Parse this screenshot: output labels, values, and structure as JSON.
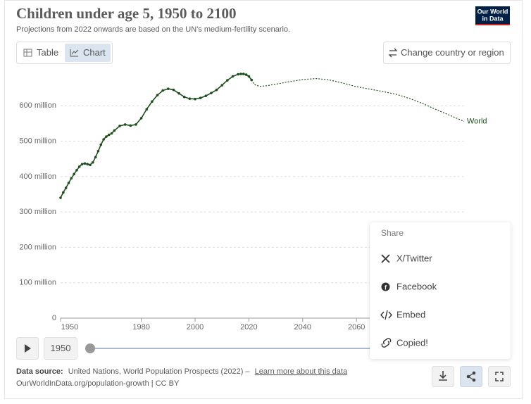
{
  "header": {
    "title": "Children under age 5, 1950 to 2100",
    "subtitle": "Projections from 2022 onwards are based on the UN's medium-fertility scenario.",
    "logo": [
      "Our World",
      "in Data"
    ]
  },
  "tabs": [
    "Table",
    "Chart"
  ],
  "change_button": "Change country or region",
  "chart_data": {
    "type": "line",
    "x": [
      1950,
      1951,
      1952,
      1953,
      1954,
      1955,
      1956,
      1957,
      1958,
      1959,
      1960,
      1961,
      1962,
      1963,
      1964,
      1965,
      1966,
      1967,
      1968,
      1969,
      1970,
      1972,
      1974,
      1976,
      1978,
      1980,
      1982,
      1984,
      1986,
      1988,
      1990,
      1992,
      1994,
      1996,
      1998,
      2000,
      2002,
      2004,
      2006,
      2008,
      2010,
      2012,
      2014,
      2016,
      2017,
      2018,
      2019,
      2020,
      2021,
      2022,
      2024,
      2026,
      2030,
      2035,
      2040,
      2045,
      2050,
      2055,
      2060,
      2065,
      2070,
      2075,
      2080,
      2085,
      2090,
      2095,
      2100
    ],
    "series": [
      {
        "name": "World",
        "color": "#1d4f1d",
        "markers": true,
        "values": [
          340000000,
          355000000,
          368000000,
          382000000,
          395000000,
          407000000,
          418000000,
          428000000,
          435000000,
          437000000,
          435000000,
          433000000,
          440000000,
          455000000,
          472000000,
          490000000,
          505000000,
          513000000,
          518000000,
          522000000,
          530000000,
          543000000,
          547000000,
          544000000,
          547000000,
          565000000,
          590000000,
          612000000,
          630000000,
          643000000,
          648000000,
          645000000,
          635000000,
          625000000,
          620000000,
          619000000,
          622000000,
          628000000,
          636000000,
          645000000,
          658000000,
          672000000,
          683000000,
          689000000,
          690000000,
          690000000,
          688000000,
          683000000,
          673000000,
          null,
          null,
          null,
          null,
          null,
          null,
          null,
          null,
          null,
          null,
          null,
          null,
          null,
          null,
          null,
          null,
          null,
          null
        ]
      },
      {
        "color": "#1d4f1d",
        "line_style": "dashed",
        "values": [
          null,
          null,
          null,
          null,
          null,
          null,
          null,
          null,
          null,
          null,
          null,
          null,
          null,
          null,
          null,
          null,
          null,
          null,
          null,
          null,
          null,
          null,
          null,
          null,
          null,
          null,
          null,
          null,
          null,
          null,
          null,
          null,
          null,
          null,
          null,
          null,
          null,
          null,
          null,
          null,
          null,
          null,
          null,
          null,
          null,
          null,
          null,
          null,
          673000000,
          660000000,
          655000000,
          656000000,
          661000000,
          668000000,
          674000000,
          677000000,
          673000000,
          664000000,
          654000000,
          647000000,
          640000000,
          632000000,
          620000000,
          605000000,
          588000000,
          572000000,
          556000000
        ]
      }
    ],
    "xlim": [
      1950,
      2100
    ],
    "xticks": [
      1950,
      1980,
      2000,
      2020,
      2040,
      2060
    ],
    "ylim": [
      0,
      700000000
    ],
    "yticks": [
      0,
      {
        "value": 100000000,
        "label": "100 million"
      },
      {
        "value": 200000000,
        "label": "200 million"
      },
      {
        "value": 300000000,
        "label": "300 million"
      },
      {
        "value": 400000000,
        "label": "400 million"
      },
      {
        "value": 500000000,
        "label": "500 million"
      },
      {
        "value": 600000000,
        "label": "600 million"
      }
    ],
    "grid": true
  },
  "timeline": {
    "year": "1950"
  },
  "share_menu": {
    "title": "Share",
    "items": [
      "X/Twitter",
      "Facebook",
      "Embed",
      "Copied!"
    ]
  },
  "footer": {
    "source_label": "Data source:",
    "source": "United Nations, World Population Prospects (2022) –",
    "link": "Learn more about this data",
    "url": "OurWorldInData.org/population-growth | CC BY"
  }
}
